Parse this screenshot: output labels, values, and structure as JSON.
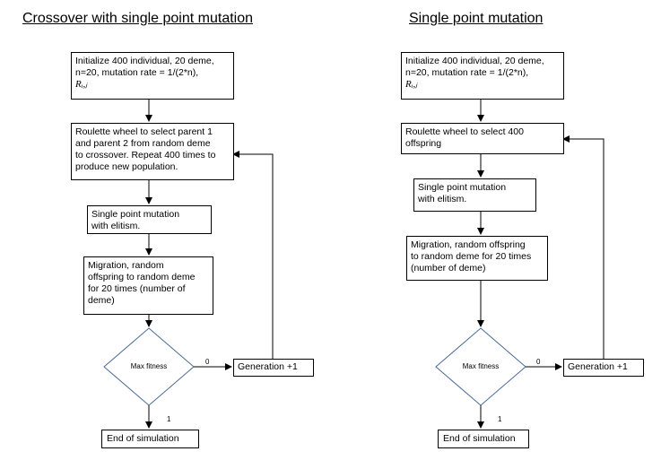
{
  "left": {
    "title": "Crossover with single point mutation",
    "init": {
      "text": "Initialize 400 individual, 20 deme,\nn=20, mutation rate = 1/(2*n),",
      "symbol": "Rᵢ,ⱼ"
    },
    "select": "Roulette wheel to select parent 1\nand parent 2 from random deme\nto crossover. Repeat 400 times to\nproduce new population.",
    "mutation": "Single point mutation\nwith elitism.",
    "migration": "Migration, random\noffspring to random deme\nfor 20 times (number of\ndeme)",
    "decision": "Max fitness",
    "generation": "Generation +1",
    "end": "End of simulation",
    "edge_no": "0",
    "edge_yes": "1"
  },
  "right": {
    "title": "Single point mutation",
    "init": {
      "text": "Initialize 400 individual, 20 deme,\nn=20, mutation rate = 1/(2*n),",
      "symbol": "Rᵢ,ⱼ"
    },
    "select": "Roulette wheel to select 400\noffspring",
    "mutation": "Single point mutation\nwith elitism.",
    "migration": "Migration, random offspring\nto random deme for 20 times\n(number of deme)",
    "decision": "Max fitness",
    "generation": "Generation +1",
    "end": "End of simulation",
    "edge_no": "0",
    "edge_yes": "1"
  }
}
